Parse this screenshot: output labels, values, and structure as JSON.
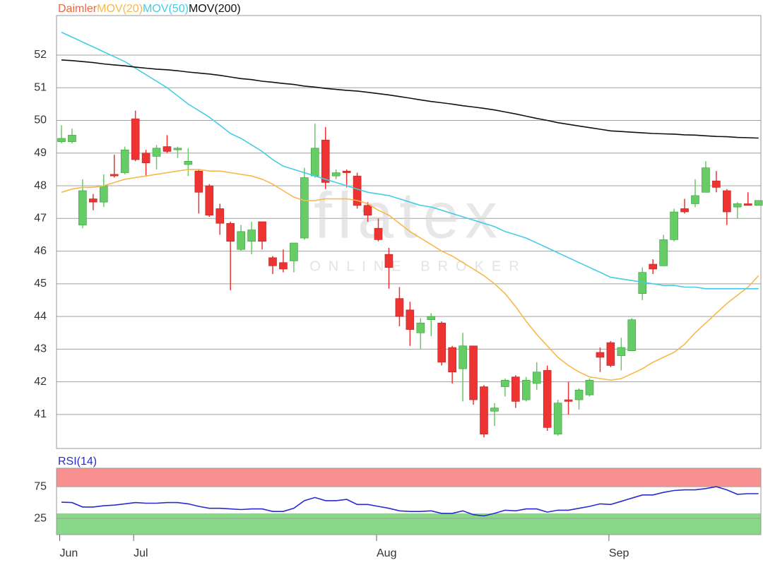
{
  "chart_data": [
    {
      "type": "candlestick",
      "categories": [
        "Jun",
        null,
        null,
        null,
        null,
        null,
        null,
        "Jul",
        null,
        null,
        null,
        null,
        null,
        null,
        null,
        null,
        null,
        null,
        null,
        null,
        null,
        null,
        null,
        null,
        null,
        null,
        null,
        null,
        null,
        null,
        "Aug",
        null,
        null,
        null,
        null,
        null,
        null,
        null,
        null,
        null,
        null,
        null,
        null,
        null,
        null,
        null,
        null,
        null,
        null,
        null,
        null,
        null,
        "Sep",
        null,
        null,
        null,
        null,
        null,
        null,
        null,
        null,
        null,
        null,
        null,
        null,
        null,
        null
      ],
      "series": [
        {
          "name": "Daimler",
          "color": "#f0643c",
          "up_color": "#66cc66",
          "down_color": "#ee3333",
          "open": [
            49.35,
            49.35,
            46.8,
            47.6,
            47.5,
            48.35,
            48.4,
            50.05,
            49.0,
            48.9,
            49.2,
            49.1,
            48.65,
            48.45,
            48.0,
            47.3,
            46.85,
            46.05,
            46.3,
            46.9,
            45.8,
            45.65,
            45.7,
            46.4,
            48.3,
            49.4,
            48.3,
            48.45,
            48.3,
            47.4,
            46.7,
            45.9,
            44.55,
            44.2,
            43.5,
            43.9,
            43.8,
            43.05,
            42.4,
            43.1,
            41.85,
            41.1,
            41.85,
            42.15,
            41.45,
            41.95,
            42.35,
            40.4,
            41.45,
            41.45,
            41.6,
            42.9,
            43.2,
            42.8,
            42.95,
            44.7,
            45.6,
            45.55,
            46.35,
            47.3,
            47.45,
            47.8,
            48.15,
            47.85,
            47.35,
            47.45,
            47.4
          ],
          "high": [
            49.85,
            49.75,
            48.2,
            47.75,
            48.35,
            48.95,
            49.2,
            50.3,
            49.1,
            49.25,
            49.55,
            49.2,
            49.15,
            48.5,
            48.05,
            47.45,
            46.9,
            46.8,
            46.9,
            46.9,
            45.85,
            46.05,
            46.25,
            48.55,
            49.9,
            49.8,
            48.5,
            48.5,
            48.4,
            47.5,
            47.0,
            46.1,
            44.9,
            44.45,
            43.95,
            44.1,
            43.85,
            43.1,
            43.5,
            43.1,
            41.9,
            41.35,
            42.1,
            42.2,
            42.15,
            42.6,
            42.5,
            41.45,
            42.0,
            41.8,
            42.1,
            43.05,
            43.25,
            43.35,
            43.95,
            45.5,
            45.75,
            46.5,
            47.3,
            47.6,
            48.2,
            48.75,
            48.45,
            47.9,
            47.5,
            47.8,
            47.55
          ],
          "low": [
            49.3,
            49.3,
            46.7,
            47.25,
            47.35,
            48.25,
            48.35,
            48.75,
            48.3,
            48.5,
            49.0,
            48.85,
            48.3,
            47.15,
            47.05,
            46.5,
            44.8,
            46.0,
            45.9,
            46.05,
            45.3,
            45.35,
            45.35,
            46.35,
            48.25,
            47.9,
            48.2,
            47.95,
            47.3,
            46.9,
            46.3,
            44.85,
            43.7,
            43.1,
            43.0,
            43.4,
            42.5,
            41.95,
            41.4,
            41.3,
            40.3,
            40.65,
            41.55,
            41.2,
            41.4,
            41.75,
            40.5,
            40.35,
            41.0,
            41.15,
            41.55,
            42.3,
            42.45,
            42.35,
            42.95,
            44.5,
            45.3,
            45.55,
            46.3,
            47.15,
            47.35,
            47.8,
            47.8,
            46.8,
            47.0,
            47.4,
            47.4
          ],
          "close": [
            49.45,
            49.55,
            47.85,
            47.5,
            48.0,
            48.3,
            49.1,
            48.8,
            48.7,
            49.15,
            49.05,
            49.15,
            48.75,
            47.8,
            47.1,
            46.85,
            46.3,
            46.6,
            46.65,
            46.3,
            45.55,
            45.45,
            46.25,
            48.25,
            49.15,
            48.1,
            48.4,
            48.4,
            47.4,
            47.1,
            46.35,
            45.5,
            44.0,
            43.6,
            43.8,
            44.0,
            42.6,
            42.3,
            43.1,
            41.45,
            40.4,
            41.2,
            42.05,
            41.4,
            42.05,
            42.3,
            40.6,
            41.35,
            41.4,
            41.75,
            42.05,
            42.75,
            42.5,
            43.05,
            43.9,
            45.35,
            45.45,
            46.35,
            47.2,
            47.2,
            47.7,
            48.55,
            47.95,
            47.2,
            47.45,
            47.4,
            47.55
          ]
        },
        {
          "name": "MOV(20)",
          "type": "line",
          "color": "#f8b84a",
          "values": [
            47.8,
            47.9,
            47.95,
            47.95,
            48.0,
            48.1,
            48.2,
            48.25,
            48.3,
            48.35,
            48.4,
            48.45,
            48.5,
            48.5,
            48.45,
            48.45,
            48.4,
            48.35,
            48.3,
            48.2,
            48.05,
            47.85,
            47.65,
            47.55,
            47.55,
            47.6,
            47.6,
            47.6,
            47.55,
            47.45,
            47.25,
            47.1,
            46.85,
            46.6,
            46.4,
            46.2,
            46.0,
            45.85,
            45.65,
            45.45,
            45.25,
            45.0,
            44.7,
            44.3,
            43.85,
            43.45,
            43.1,
            42.75,
            42.5,
            42.3,
            42.15,
            42.1,
            42.05,
            42.1,
            42.25,
            42.4,
            42.6,
            42.75,
            42.9,
            43.15,
            43.5,
            43.8,
            44.1,
            44.4,
            44.65,
            44.9,
            45.25
          ]
        },
        {
          "name": "MOV(50)",
          "type": "line",
          "color": "#44cce8",
          "values": [
            52.7,
            52.55,
            52.4,
            52.25,
            52.1,
            51.95,
            51.8,
            51.6,
            51.4,
            51.2,
            51.0,
            50.75,
            50.5,
            50.3,
            50.1,
            49.85,
            49.6,
            49.45,
            49.25,
            49.05,
            48.8,
            48.6,
            48.5,
            48.4,
            48.3,
            48.2,
            48.1,
            48.0,
            47.9,
            47.8,
            47.75,
            47.7,
            47.6,
            47.5,
            47.4,
            47.35,
            47.25,
            47.15,
            47.05,
            46.95,
            46.85,
            46.75,
            46.6,
            46.5,
            46.4,
            46.25,
            46.1,
            45.95,
            45.8,
            45.65,
            45.5,
            45.35,
            45.2,
            45.15,
            45.1,
            45.05,
            45.0,
            44.95,
            44.95,
            44.9,
            44.9,
            44.85,
            44.85,
            44.85,
            44.85,
            44.85,
            44.85
          ]
        },
        {
          "name": "MOV(200)",
          "type": "line",
          "color": "#111111",
          "values": [
            51.85,
            51.83,
            51.8,
            51.77,
            51.73,
            51.7,
            51.67,
            51.63,
            51.6,
            51.57,
            51.55,
            51.52,
            51.48,
            51.45,
            51.42,
            51.38,
            51.33,
            51.28,
            51.25,
            51.2,
            51.17,
            51.13,
            51.1,
            51.05,
            51.02,
            50.98,
            50.95,
            50.92,
            50.9,
            50.86,
            50.82,
            50.78,
            50.73,
            50.68,
            50.63,
            50.58,
            50.54,
            50.5,
            50.45,
            50.41,
            50.37,
            50.32,
            50.26,
            50.2,
            50.13,
            50.06,
            50.0,
            49.93,
            49.88,
            49.83,
            49.78,
            49.73,
            49.68,
            49.66,
            49.64,
            49.62,
            49.6,
            49.59,
            49.58,
            49.56,
            49.55,
            49.53,
            49.51,
            49.5,
            49.48,
            49.47,
            49.46
          ]
        }
      ],
      "ylim": [
        39.96,
        53.21
      ],
      "yticks": [
        41,
        42,
        43,
        44,
        45,
        46,
        47,
        48,
        49,
        50,
        51,
        52
      ],
      "grid": true,
      "watermark": {
        "logo": "flatex",
        "tagline": "ONLINE BROKER"
      }
    },
    {
      "type": "line",
      "series": [
        {
          "name": "RSI(14)",
          "color": "#2a2ad0",
          "values": [
            50.5,
            50,
            43,
            43,
            45,
            46,
            48,
            50,
            49,
            49,
            50,
            50,
            48,
            44,
            41,
            41,
            40,
            39,
            40,
            40,
            36,
            36,
            41,
            53,
            58,
            53,
            53,
            55,
            47,
            47,
            44,
            41,
            37,
            36,
            36,
            37,
            33,
            33,
            37,
            31,
            29,
            33,
            38,
            37,
            40,
            40,
            35,
            38,
            38,
            41,
            44,
            48,
            47,
            52,
            57,
            62,
            62,
            66,
            69,
            70,
            70,
            72,
            75,
            70,
            63,
            64,
            64
          ]
        }
      ],
      "ylim": [
        -0.5,
        104
      ],
      "yticks": [
        25,
        75
      ],
      "grid": true,
      "bands": [
        {
          "from": 75,
          "to": 104,
          "color": "#f89090"
        },
        {
          "from": -0.5,
          "to": 33,
          "color": "#88d888"
        }
      ]
    }
  ]
}
